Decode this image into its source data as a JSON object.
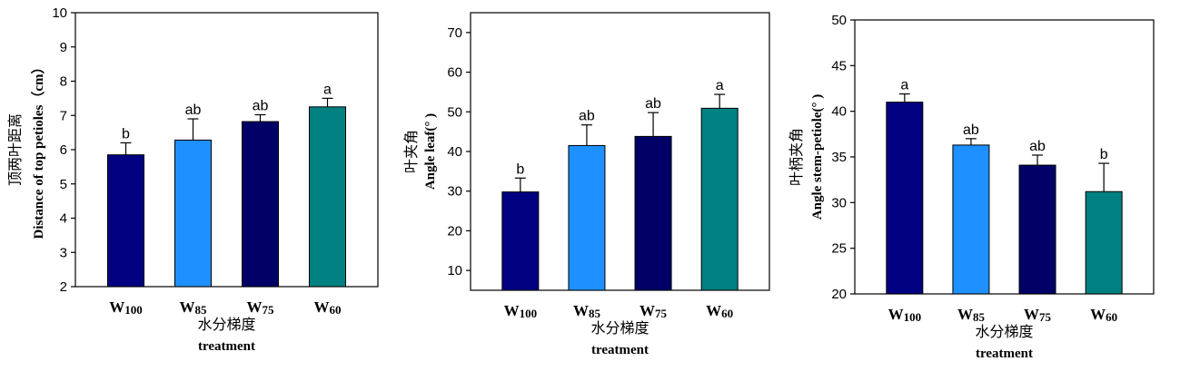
{
  "chart_data": [
    {
      "type": "bar",
      "categories": [
        "W100",
        "W85",
        "W75",
        "W60"
      ],
      "category_labels": [
        {
          "main": "W",
          "sub": "100"
        },
        {
          "main": "W",
          "sub": "85"
        },
        {
          "main": "W",
          "sub": "75"
        },
        {
          "main": "W",
          "sub": "60"
        }
      ],
      "values": [
        5.85,
        6.28,
        6.82,
        7.25
      ],
      "errors": [
        0.35,
        0.62,
        0.2,
        0.25
      ],
      "significance": [
        "b",
        "ab",
        "ab",
        "a"
      ],
      "bar_colors": [
        "#000080",
        "#1E90FF",
        "#000066",
        "#008080"
      ],
      "ylabel_cn": "顶两叶距离",
      "ylabel_en": "Distance of top petioles（cm）",
      "xlabel_cn": "水分梯度",
      "xlabel_en": "treatment",
      "ylim": [
        2,
        10
      ],
      "yticks": [
        2,
        3,
        4,
        5,
        6,
        7,
        8,
        9,
        10
      ],
      "grid": false
    },
    {
      "type": "bar",
      "categories": [
        "W100",
        "W85",
        "W75",
        "W60"
      ],
      "category_labels": [
        {
          "main": "W",
          "sub": "100"
        },
        {
          "main": "W",
          "sub": "85"
        },
        {
          "main": "W",
          "sub": "75"
        },
        {
          "main": "W",
          "sub": "60"
        }
      ],
      "values": [
        29.8,
        41.5,
        43.8,
        50.9
      ],
      "errors": [
        3.5,
        5.2,
        6.0,
        3.5
      ],
      "significance": [
        "b",
        "ab",
        "ab",
        "a"
      ],
      "bar_colors": [
        "#000080",
        "#1E90FF",
        "#000066",
        "#008080"
      ],
      "ylabel_cn": "叶夹角",
      "ylabel_en": "Angle leaf(° )",
      "xlabel_cn": "水分梯度",
      "xlabel_en": "treatment",
      "ylim": [
        5,
        75
      ],
      "yticks": [
        10,
        20,
        30,
        40,
        50,
        60,
        70
      ],
      "grid": false
    },
    {
      "type": "bar",
      "categories": [
        "W100",
        "W85",
        "W75",
        "W60"
      ],
      "category_labels": [
        {
          "main": "W",
          "sub": "100"
        },
        {
          "main": "W",
          "sub": "85"
        },
        {
          "main": "W",
          "sub": "75"
        },
        {
          "main": "W",
          "sub": "60"
        }
      ],
      "values": [
        41.0,
        36.3,
        34.1,
        31.2
      ],
      "errors": [
        0.9,
        0.7,
        1.1,
        3.1
      ],
      "significance": [
        "a",
        "ab",
        "ab",
        "b"
      ],
      "bar_colors": [
        "#000080",
        "#1E90FF",
        "#000066",
        "#008080"
      ],
      "ylabel_cn": "叶柄夹角",
      "ylabel_en": "Angle stem-petiole(° )",
      "xlabel_cn": "水分梯度",
      "xlabel_en": "treatment",
      "ylim": [
        20,
        50
      ],
      "yticks": [
        20,
        25,
        30,
        35,
        40,
        45,
        50
      ],
      "grid": false
    }
  ]
}
